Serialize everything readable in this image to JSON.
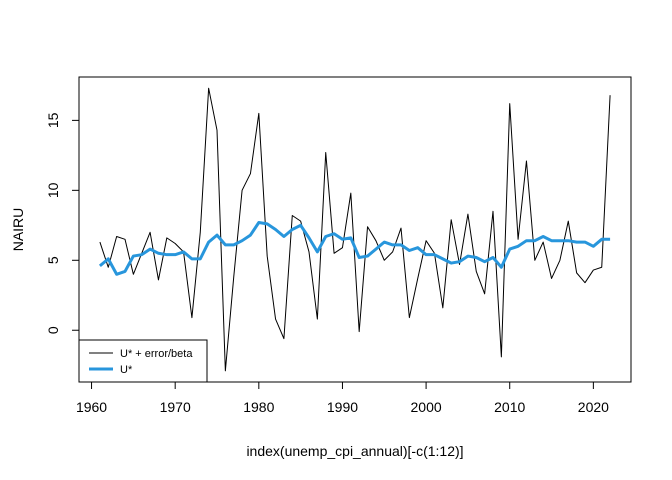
{
  "chart_data": {
    "type": "line",
    "title": "",
    "xlabel": "index(unemp_cpi_annual)[-c(1:12)]",
    "ylabel": "NAIRU",
    "xlim": [
      1958.5,
      2024.5
    ],
    "ylim": [
      -3.7,
      18.1
    ],
    "xticks": [
      "1960",
      "1970",
      "1980",
      "1990",
      "2000",
      "2010",
      "2020"
    ],
    "yticks": [
      "0",
      "5",
      "10",
      "15"
    ],
    "grid": false,
    "legend_position": "bottom-left",
    "x": [
      1961,
      1962,
      1963,
      1964,
      1965,
      1966,
      1967,
      1968,
      1969,
      1970,
      1971,
      1972,
      1973,
      1974,
      1975,
      1976,
      1977,
      1978,
      1979,
      1980,
      1981,
      1982,
      1983,
      1984,
      1985,
      1986,
      1987,
      1988,
      1989,
      1990,
      1991,
      1992,
      1993,
      1994,
      1995,
      1996,
      1997,
      1998,
      1999,
      2000,
      2001,
      2002,
      2003,
      2004,
      2005,
      2006,
      2007,
      2008,
      2009,
      2010,
      2011,
      2012,
      2013,
      2014,
      2015,
      2016,
      2017,
      2018,
      2019,
      2020,
      2021,
      2022
    ],
    "series": [
      {
        "name": "U* + error/beta",
        "color": "#000000",
        "line_width": 1,
        "values": [
          6.3,
          4.5,
          6.7,
          6.5,
          4.0,
          5.5,
          7.0,
          3.6,
          6.6,
          6.2,
          5.6,
          0.9,
          7.0,
          17.3,
          14.3,
          -2.9,
          3.8,
          10.0,
          11.2,
          15.5,
          5.3,
          0.8,
          -0.6,
          8.2,
          7.8,
          5.6,
          0.8,
          12.7,
          5.5,
          5.9,
          9.8,
          -0.1,
          7.4,
          6.4,
          5.0,
          5.6,
          7.3,
          0.9,
          3.7,
          6.4,
          5.5,
          1.6,
          7.9,
          4.7,
          8.3,
          4.2,
          2.6,
          8.5,
          -1.9,
          16.2,
          6.5,
          12.1,
          5.0,
          6.3,
          3.7,
          5.0,
          7.8,
          4.1,
          3.4,
          4.3,
          4.5,
          16.8
        ]
      },
      {
        "name": "U*",
        "color": "#2896dc",
        "line_width": 3,
        "values": [
          4.6,
          5.1,
          4.0,
          4.2,
          5.3,
          5.4,
          5.8,
          5.5,
          5.4,
          5.4,
          5.6,
          5.1,
          5.1,
          6.3,
          6.8,
          6.1,
          6.1,
          6.4,
          6.8,
          7.7,
          7.6,
          7.2,
          6.7,
          7.2,
          7.5,
          6.6,
          5.6,
          6.7,
          6.9,
          6.5,
          6.6,
          5.2,
          5.3,
          5.8,
          6.3,
          6.1,
          6.1,
          5.7,
          5.9,
          5.4,
          5.4,
          5.1,
          4.8,
          4.9,
          5.3,
          5.2,
          4.9,
          5.2,
          4.5,
          5.8,
          6.0,
          6.4,
          6.4,
          6.7,
          6.4,
          6.4,
          6.4,
          6.3,
          6.3,
          6.0,
          6.5,
          6.5
        ]
      }
    ]
  }
}
